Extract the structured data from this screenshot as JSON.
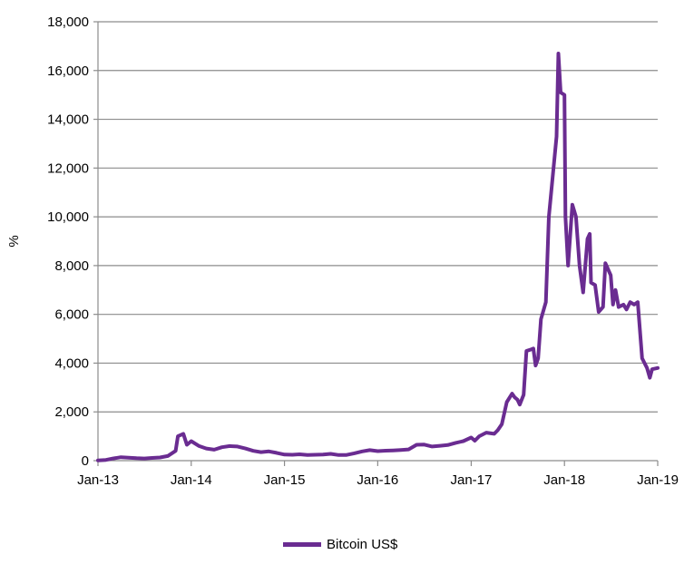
{
  "chart_data": {
    "type": "line",
    "title": "",
    "xlabel": "",
    "ylabel": "%",
    "ylim": [
      0,
      18000
    ],
    "xlim": [
      "2013-01",
      "2019-01"
    ],
    "grid": "horizontal",
    "legend_position": "bottom",
    "y_ticks": [
      "0",
      "2,000",
      "4,000",
      "6,000",
      "8,000",
      "10,000",
      "12,000",
      "14,000",
      "16,000",
      "18,000"
    ],
    "x_ticks": [
      "Jan-13",
      "Jan-14",
      "Jan-15",
      "Jan-16",
      "Jan-17",
      "Jan-18",
      "Jan-19"
    ],
    "series": [
      {
        "name": "Bitcoin US$",
        "color": "#6a2c91",
        "points": [
          [
            "2013-01-01",
            13
          ],
          [
            "2013-02-01",
            30
          ],
          [
            "2013-03-01",
            90
          ],
          [
            "2013-04-01",
            140
          ],
          [
            "2013-05-01",
            120
          ],
          [
            "2013-06-01",
            100
          ],
          [
            "2013-07-01",
            90
          ],
          [
            "2013-08-01",
            110
          ],
          [
            "2013-09-01",
            130
          ],
          [
            "2013-10-01",
            190
          ],
          [
            "2013-11-01",
            400
          ],
          [
            "2013-11-10",
            1000
          ],
          [
            "2013-12-01",
            1100
          ],
          [
            "2013-12-15",
            650
          ],
          [
            "2014-01-01",
            800
          ],
          [
            "2014-02-01",
            600
          ],
          [
            "2014-03-01",
            500
          ],
          [
            "2014-04-01",
            450
          ],
          [
            "2014-05-01",
            550
          ],
          [
            "2014-06-01",
            600
          ],
          [
            "2014-07-01",
            580
          ],
          [
            "2014-08-01",
            500
          ],
          [
            "2014-09-01",
            400
          ],
          [
            "2014-10-01",
            350
          ],
          [
            "2014-11-01",
            380
          ],
          [
            "2014-12-01",
            320
          ],
          [
            "2015-01-01",
            250
          ],
          [
            "2015-02-01",
            240
          ],
          [
            "2015-03-01",
            260
          ],
          [
            "2015-04-01",
            230
          ],
          [
            "2015-05-01",
            240
          ],
          [
            "2015-06-01",
            250
          ],
          [
            "2015-07-01",
            280
          ],
          [
            "2015-08-01",
            230
          ],
          [
            "2015-09-01",
            235
          ],
          [
            "2015-10-01",
            300
          ],
          [
            "2015-11-01",
            380
          ],
          [
            "2015-12-01",
            430
          ],
          [
            "2016-01-01",
            390
          ],
          [
            "2016-02-01",
            410
          ],
          [
            "2016-03-01",
            420
          ],
          [
            "2016-04-01",
            440
          ],
          [
            "2016-05-01",
            460
          ],
          [
            "2016-06-01",
            650
          ],
          [
            "2016-07-01",
            660
          ],
          [
            "2016-08-01",
            580
          ],
          [
            "2016-09-01",
            610
          ],
          [
            "2016-10-01",
            640
          ],
          [
            "2016-11-01",
            730
          ],
          [
            "2016-12-01",
            800
          ],
          [
            "2017-01-01",
            950
          ],
          [
            "2017-01-15",
            820
          ],
          [
            "2017-02-01",
            1000
          ],
          [
            "2017-03-01",
            1150
          ],
          [
            "2017-04-01",
            1100
          ],
          [
            "2017-04-15",
            1250
          ],
          [
            "2017-05-01",
            1500
          ],
          [
            "2017-05-20",
            2400
          ],
          [
            "2017-06-10",
            2750
          ],
          [
            "2017-06-20",
            2600
          ],
          [
            "2017-07-01",
            2500
          ],
          [
            "2017-07-10",
            2300
          ],
          [
            "2017-07-25",
            2700
          ],
          [
            "2017-08-05",
            4500
          ],
          [
            "2017-08-20",
            4550
          ],
          [
            "2017-09-01",
            4600
          ],
          [
            "2017-09-10",
            3900
          ],
          [
            "2017-09-20",
            4200
          ],
          [
            "2017-10-01",
            5800
          ],
          [
            "2017-10-20",
            6500
          ],
          [
            "2017-11-01",
            10000
          ],
          [
            "2017-12-01",
            13300
          ],
          [
            "2017-12-08",
            16700
          ],
          [
            "2017-12-17",
            15100
          ],
          [
            "2018-01-01",
            15000
          ],
          [
            "2018-01-05",
            10000
          ],
          [
            "2018-01-15",
            8000
          ],
          [
            "2018-02-01",
            10500
          ],
          [
            "2018-02-15",
            10000
          ],
          [
            "2018-03-01",
            8000
          ],
          [
            "2018-03-15",
            6900
          ],
          [
            "2018-04-01",
            9100
          ],
          [
            "2018-04-10",
            9300
          ],
          [
            "2018-04-15",
            7300
          ],
          [
            "2018-05-01",
            7200
          ],
          [
            "2018-05-15",
            6100
          ],
          [
            "2018-06-01",
            6300
          ],
          [
            "2018-06-10",
            8100
          ],
          [
            "2018-07-01",
            7600
          ],
          [
            "2018-07-10",
            6400
          ],
          [
            "2018-07-20",
            7000
          ],
          [
            "2018-08-01",
            6300
          ],
          [
            "2018-08-20",
            6400
          ],
          [
            "2018-09-01",
            6200
          ],
          [
            "2018-09-15",
            6500
          ],
          [
            "2018-10-01",
            6400
          ],
          [
            "2018-10-15",
            6500
          ],
          [
            "2018-11-01",
            4200
          ],
          [
            "2018-11-20",
            3800
          ],
          [
            "2018-12-01",
            3400
          ],
          [
            "2018-12-10",
            3750
          ],
          [
            "2019-01-01",
            3800
          ]
        ]
      }
    ]
  }
}
